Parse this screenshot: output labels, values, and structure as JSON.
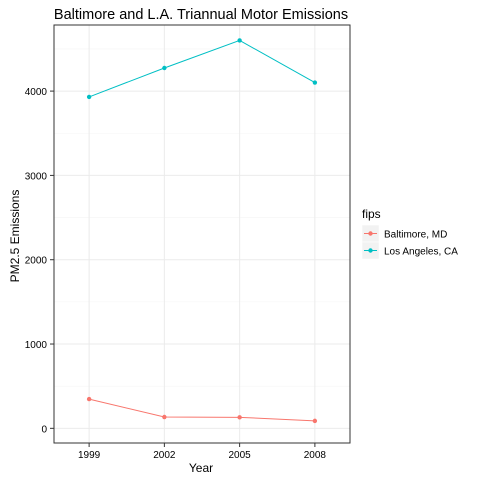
{
  "chart_data": {
    "type": "line",
    "title": "Baltimore and L.A. Triannual Motor Emissions",
    "xlabel": "Year",
    "ylabel": "PM2.5 Emissions",
    "x": [
      1999,
      2002,
      2005,
      2008
    ],
    "x_tick_labels": [
      "1999",
      "2002",
      "2005",
      "2008"
    ],
    "y_ticks": [
      0,
      1000,
      2000,
      3000,
      4000
    ],
    "y_tick_labels": [
      "0",
      "1000",
      "2000",
      "3000",
      "4000"
    ],
    "xlim": [
      1997.6,
      2009.4
    ],
    "ylim": [
      -174,
      4784
    ],
    "grid": true,
    "legend": {
      "title": "fips",
      "position": "right"
    },
    "series": [
      {
        "name": "Baltimore, MD",
        "color": "#F8766D",
        "values": [
          346.8,
          134.3,
          130.4,
          88.3
        ]
      },
      {
        "name": "Los Angeles, CA",
        "color": "#00BFC4",
        "values": [
          3931.1,
          4274.0,
          4601.0,
          4101.3
        ]
      }
    ],
    "colors": {
      "panel_border": "#333333",
      "grid_major": "#EBEBEB",
      "grid_minor": "#F5F5F5",
      "text": "#000000"
    }
  }
}
